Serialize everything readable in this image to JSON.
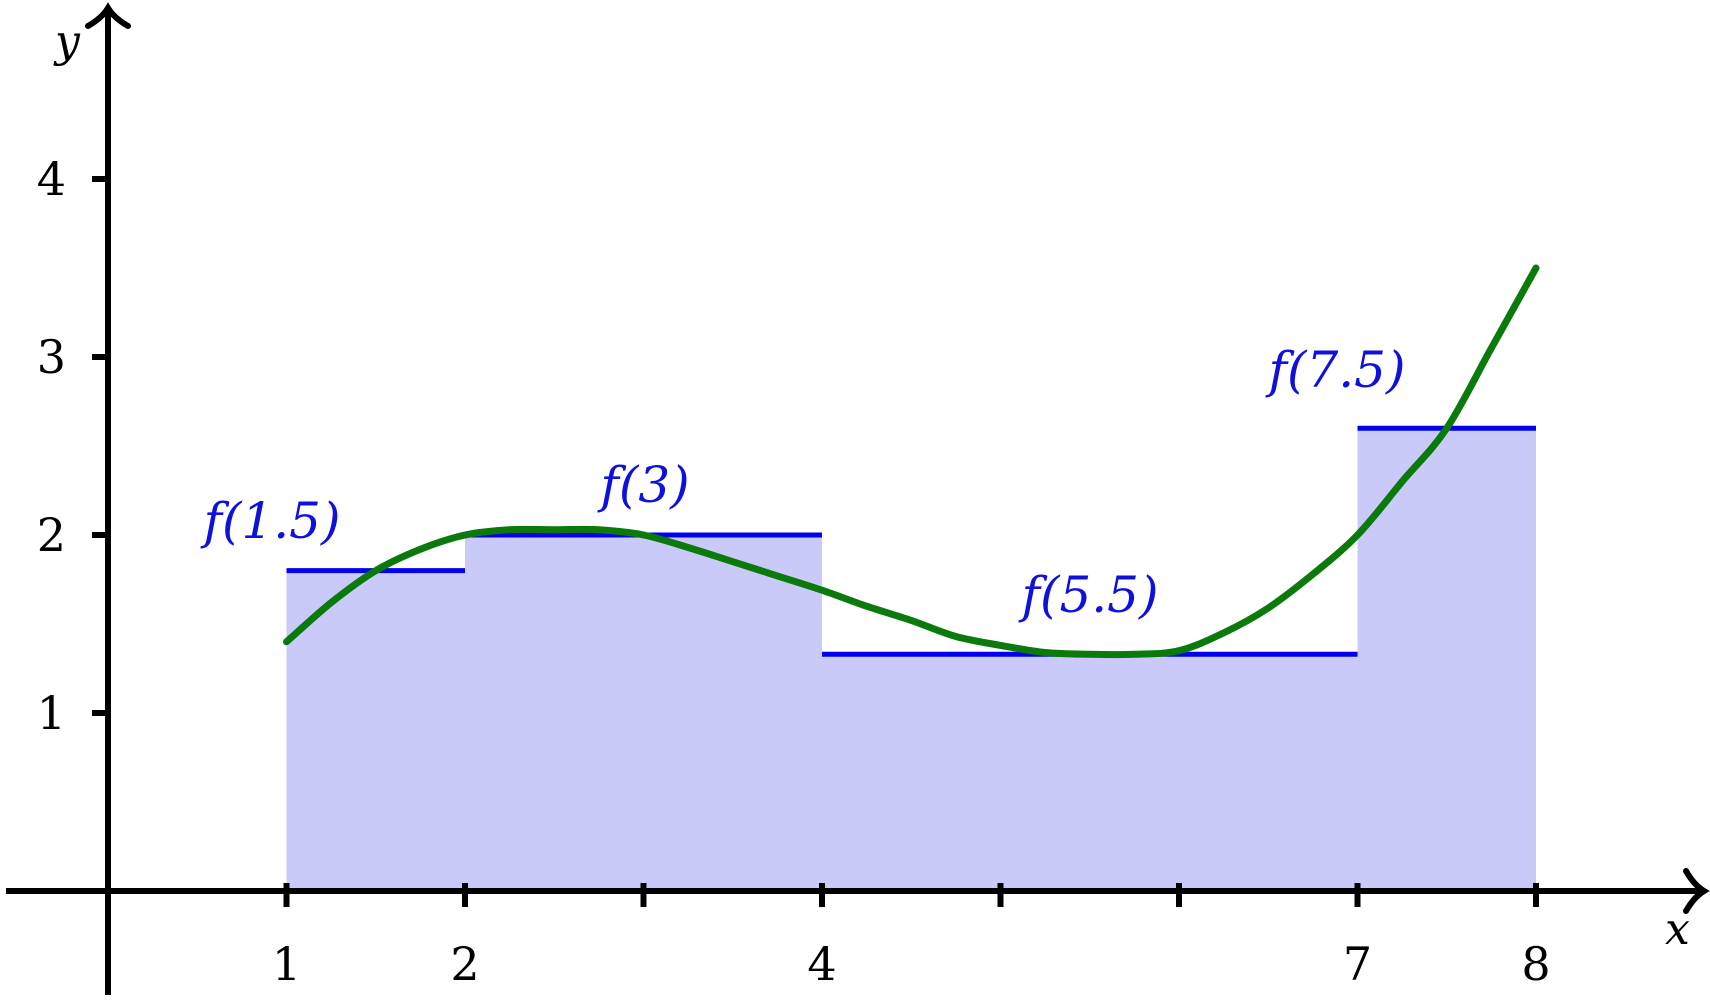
{
  "chart_data": {
    "type": "area",
    "title": "",
    "xlabel": "x",
    "ylabel": "y",
    "xlim": [
      0,
      9
    ],
    "ylim": [
      0,
      4.8
    ],
    "x_ticks": [
      {
        "value": 1,
        "label": "1"
      },
      {
        "value": 2,
        "label": "2"
      },
      {
        "value": 3,
        "label": ""
      },
      {
        "value": 4,
        "label": "4"
      },
      {
        "value": 5,
        "label": ""
      },
      {
        "value": 6,
        "label": ""
      },
      {
        "value": 7,
        "label": "7"
      },
      {
        "value": 8,
        "label": "8"
      }
    ],
    "y_ticks": [
      {
        "value": 1,
        "label": "1"
      },
      {
        "value": 2,
        "label": "2"
      },
      {
        "value": 3,
        "label": "3"
      },
      {
        "value": 4,
        "label": "4"
      }
    ],
    "rectangles": [
      {
        "x0": 1,
        "x1": 2,
        "height": 1.8,
        "label": "f(1.5)"
      },
      {
        "x0": 2,
        "x1": 4,
        "height": 2.0,
        "label": "f(3)"
      },
      {
        "x0": 4,
        "x1": 7,
        "height": 1.33,
        "label": "f(5.5)"
      },
      {
        "x0": 7,
        "x1": 8,
        "height": 2.6,
        "label": "f(7.5)"
      }
    ],
    "curve": {
      "x": [
        1.0,
        1.25,
        1.5,
        1.75,
        2.0,
        2.25,
        2.5,
        2.75,
        3.0,
        3.25,
        3.5,
        3.75,
        4.0,
        4.25,
        4.5,
        4.75,
        5.0,
        5.25,
        5.5,
        5.75,
        6.0,
        6.25,
        6.5,
        6.75,
        7.0,
        7.25,
        7.5,
        7.75,
        8.0
      ],
      "y": [
        1.4,
        1.62,
        1.8,
        1.92,
        2.0,
        2.03,
        2.03,
        2.03,
        2.0,
        1.93,
        1.85,
        1.77,
        1.69,
        1.6,
        1.52,
        1.43,
        1.38,
        1.34,
        1.33,
        1.33,
        1.35,
        1.45,
        1.59,
        1.78,
        2.0,
        2.3,
        2.6,
        3.05,
        3.5
      ]
    },
    "colors": {
      "axis": "#000000",
      "rect_fill": "#cacafa",
      "rect_top": "#0000ee",
      "curve": "#0a7a0a",
      "label": "#1010dd"
    }
  }
}
